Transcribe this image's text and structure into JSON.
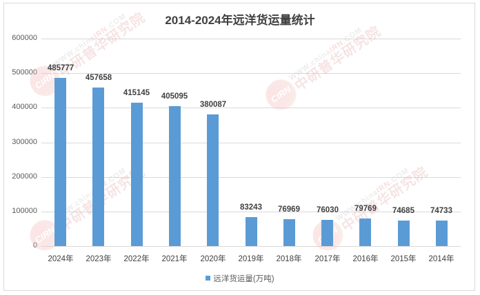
{
  "chart_data": {
    "type": "bar",
    "title": "2014-2024年远洋货运量统计",
    "xlabel": "",
    "ylabel": "",
    "ylim": [
      0,
      600000
    ],
    "yticks": [
      "600000",
      "500000",
      "400000",
      "300000",
      "200000",
      "100000",
      "0"
    ],
    "grid": true,
    "legend_position": "bottom",
    "categories": [
      "2024年",
      "2023年",
      "2022年",
      "2021年",
      "2020年",
      "2019年",
      "2018年",
      "2017年",
      "2016年",
      "2015年",
      "2014年"
    ],
    "series": [
      {
        "name": "远洋货运量(万吨)",
        "color": "#5b9bd5",
        "values": [
          485777,
          457658,
          415145,
          405095,
          380087,
          83243,
          76969,
          76030,
          79769,
          74685,
          74733
        ]
      }
    ],
    "data_labels": [
      "485777",
      "457658",
      "415145",
      "405095",
      "380087",
      "83243",
      "76969",
      "76030",
      "79769",
      "74685",
      "74733"
    ]
  },
  "legend": {
    "label": "远洋货运量(万吨)"
  },
  "watermark": {
    "logo": "CIRN",
    "url_prefix": "WWW.china",
    "url_highlight": "IRN",
    "url_suffix": ".COM",
    "name": "中研普华研究院"
  }
}
